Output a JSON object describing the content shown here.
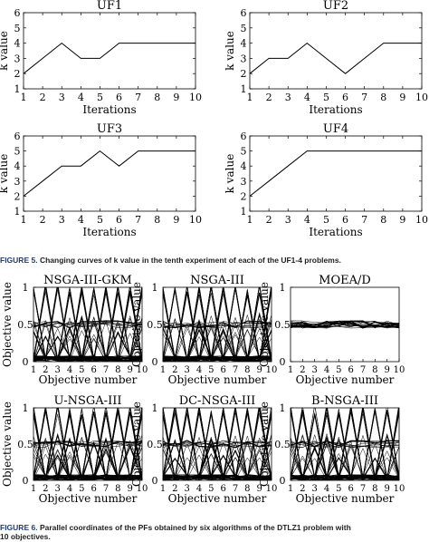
{
  "figure5": {
    "caption_label": "FIGURE 5.",
    "caption_text": "Changing curves of k value in the tenth experiment of each of the UF1-4 problems.",
    "chart_data": [
      {
        "type": "line",
        "title": "UF1",
        "xlabel": "Iterations",
        "ylabel": "k value",
        "xlim": [
          1,
          10
        ],
        "ylim": [
          1,
          6
        ],
        "x": [
          1,
          2,
          3,
          4,
          5,
          6,
          7,
          8,
          9,
          10
        ],
        "values": [
          2,
          3,
          4,
          3,
          3,
          4,
          4,
          4,
          4,
          4
        ]
      },
      {
        "type": "line",
        "title": "UF2",
        "xlabel": "Iterations",
        "ylabel": "k value",
        "xlim": [
          1,
          10
        ],
        "ylim": [
          1,
          6
        ],
        "x": [
          1,
          2,
          3,
          4,
          5,
          6,
          7,
          8,
          9,
          10
        ],
        "values": [
          2,
          3,
          3,
          4,
          3,
          2,
          3,
          4,
          4,
          4
        ]
      },
      {
        "type": "line",
        "title": "UF3",
        "xlabel": "Iterations",
        "ylabel": "k value",
        "xlim": [
          1,
          10
        ],
        "ylim": [
          1,
          6
        ],
        "x": [
          1,
          2,
          3,
          4,
          5,
          6,
          7,
          8,
          9,
          10
        ],
        "values": [
          2,
          3,
          4,
          4,
          5,
          4,
          5,
          5,
          5,
          5
        ]
      },
      {
        "type": "line",
        "title": "UF4",
        "xlabel": "Iterations",
        "ylabel": "k value",
        "xlim": [
          1,
          10
        ],
        "ylim": [
          1,
          6
        ],
        "x": [
          1,
          2,
          3,
          4,
          5,
          6,
          7,
          8,
          9,
          10
        ],
        "values": [
          2,
          3,
          4,
          5,
          5,
          5,
          5,
          5,
          5,
          5
        ]
      }
    ]
  },
  "figure6": {
    "caption_label": "FIGURE 6.",
    "caption_line1": "Parallel coordinates of the PFs obtained by six algorithms of the DTLZ1 problem with",
    "caption_line2": "10 objectives.",
    "chart_data": [
      {
        "type": "line",
        "title": "NSGA-III-GKM",
        "xlabel": "Objective number",
        "ylabel": "Objective value",
        "xlim": [
          1,
          10
        ],
        "ylim": [
          0,
          1
        ]
      },
      {
        "type": "line",
        "title": "NSGA-III",
        "xlabel": "Objective number",
        "ylabel": "Objective value",
        "xlim": [
          1,
          10
        ],
        "ylim": [
          0,
          1
        ]
      },
      {
        "type": "line",
        "title": "MOEA/D",
        "xlabel": "Objective number",
        "ylabel": "Objective value",
        "xlim": [
          1,
          10
        ],
        "ylim": [
          0,
          1
        ]
      },
      {
        "type": "line",
        "title": "U-NSGA-III",
        "xlabel": "Objective number",
        "ylabel": "Objective value",
        "xlim": [
          1,
          10
        ],
        "ylim": [
          0,
          1
        ]
      },
      {
        "type": "line",
        "title": "DC-NSGA-III",
        "xlabel": "Objective number",
        "ylabel": "Objective value",
        "xlim": [
          1,
          10
        ],
        "ylim": [
          0,
          1
        ]
      },
      {
        "type": "line",
        "title": "B-NSGA-III",
        "xlabel": "Objective number",
        "ylabel": "Objective value",
        "xlim": [
          1,
          10
        ],
        "ylim": [
          0,
          1
        ]
      }
    ]
  }
}
